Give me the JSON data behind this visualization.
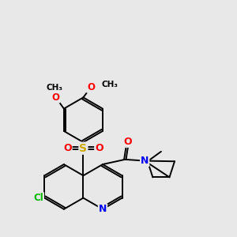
{
  "background_color": "#e8e8e8",
  "bond_color": "#000000",
  "atom_colors": {
    "O": "#ff0000",
    "S": "#ccaa00",
    "N": "#0000ff",
    "Cl": "#00bb00",
    "C": "#000000"
  },
  "figsize": [
    3.0,
    3.0
  ],
  "dpi": 100,
  "lw": 1.4
}
